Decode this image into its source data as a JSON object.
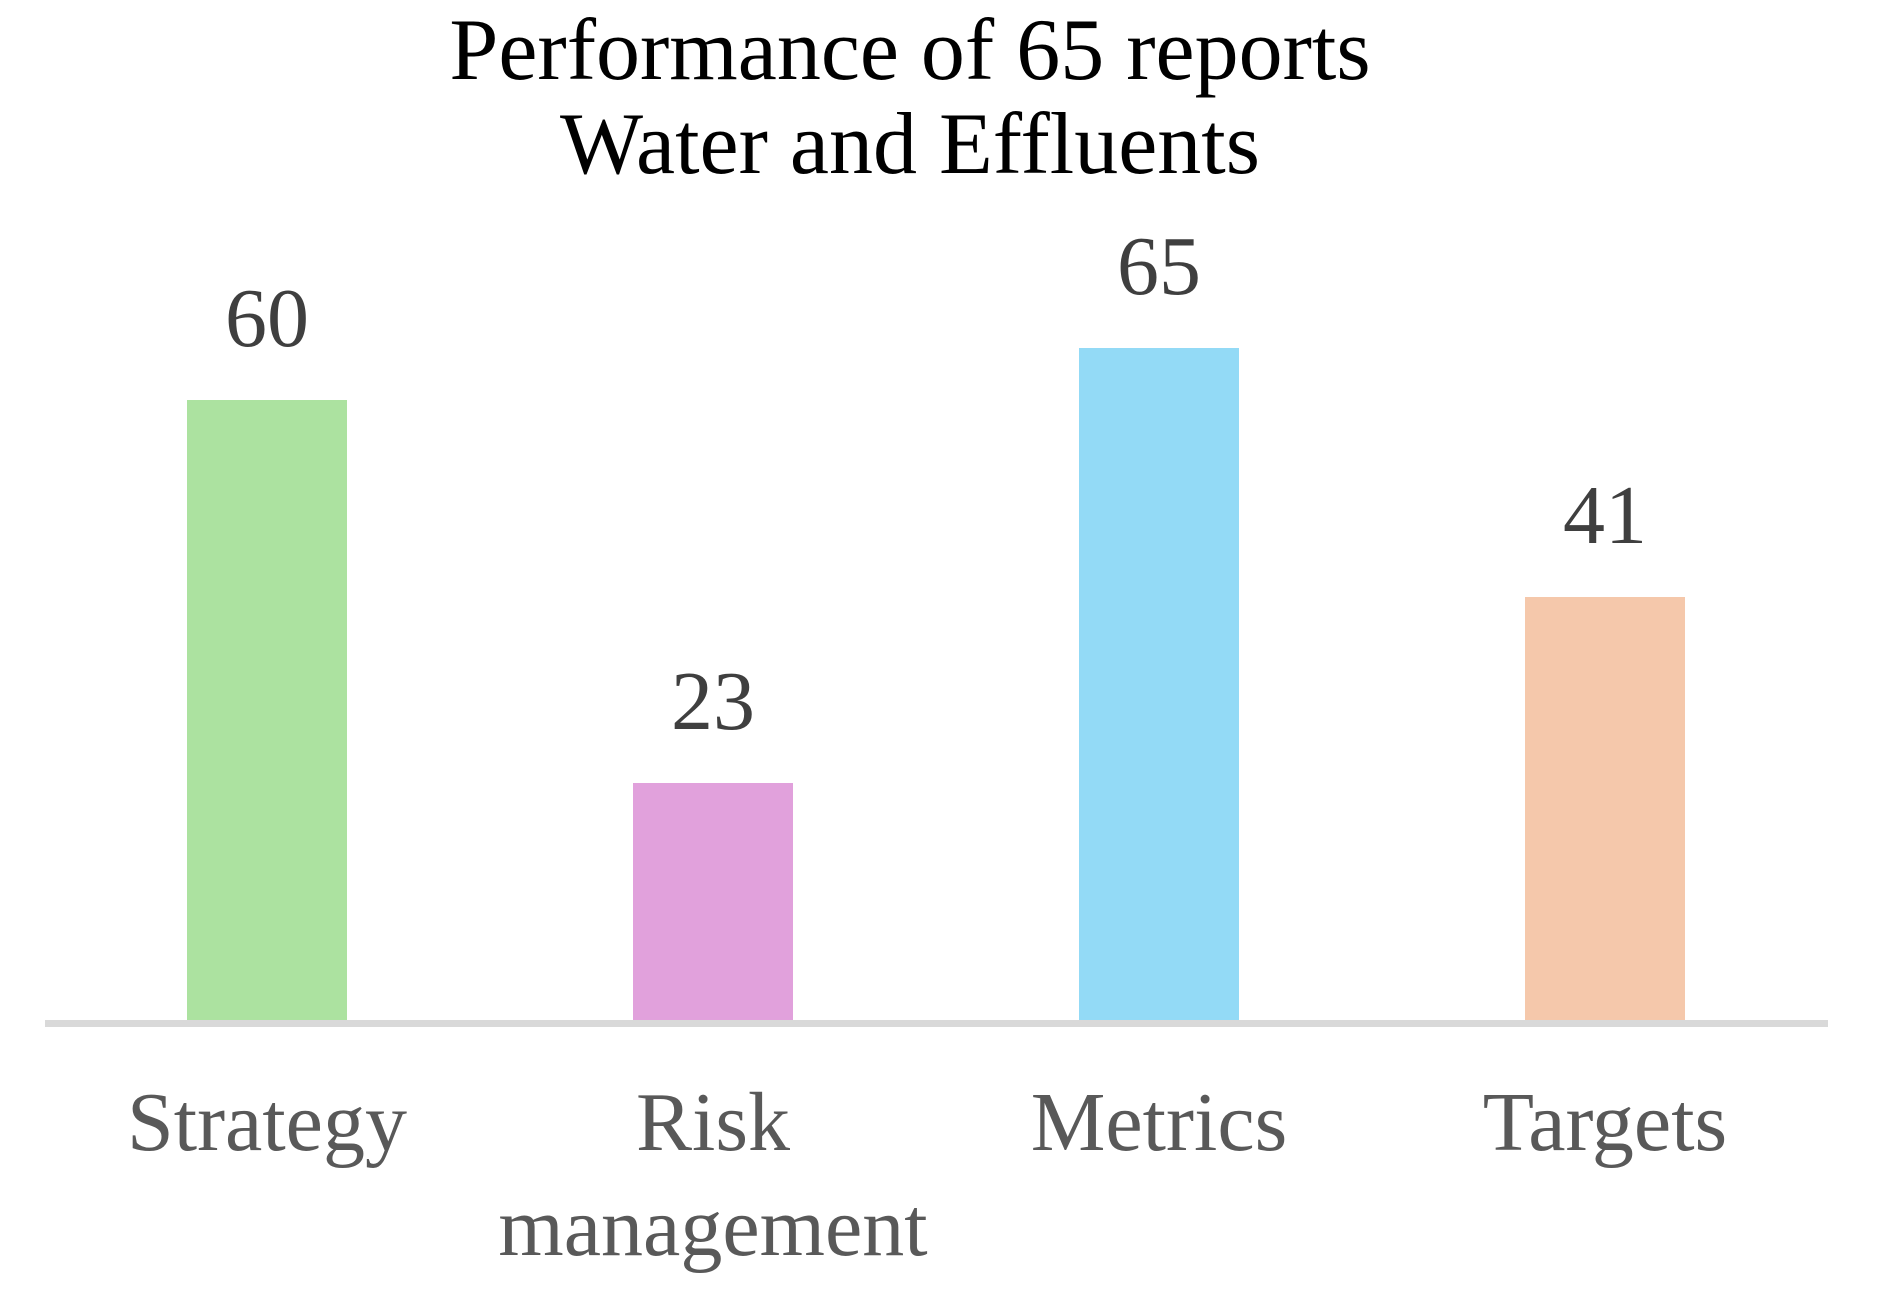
{
  "chart_data": {
    "type": "bar",
    "title": "Performance of 65 reports — Water and Effluents",
    "title_lines": [
      "Performance of 65 reports",
      "Water and Effluents"
    ],
    "categories": [
      "Strategy",
      "Risk management",
      "Metrics",
      "Targets"
    ],
    "values": [
      60,
      23,
      65,
      41
    ],
    "bar_colors": [
      "#ACE2A0",
      "#E1A1DC",
      "#93DAF6",
      "#F5C8AB"
    ],
    "title_color": "#000000",
    "value_label_color": "#3F3F3F",
    "category_label_color": "#595959",
    "axis_line_color": "#D9D9D9",
    "background_color": "#FFFFFF",
    "xlabel": "",
    "ylabel": "",
    "ylim": [
      0,
      65
    ],
    "grid": false,
    "legend": false,
    "data_labels": true
  }
}
